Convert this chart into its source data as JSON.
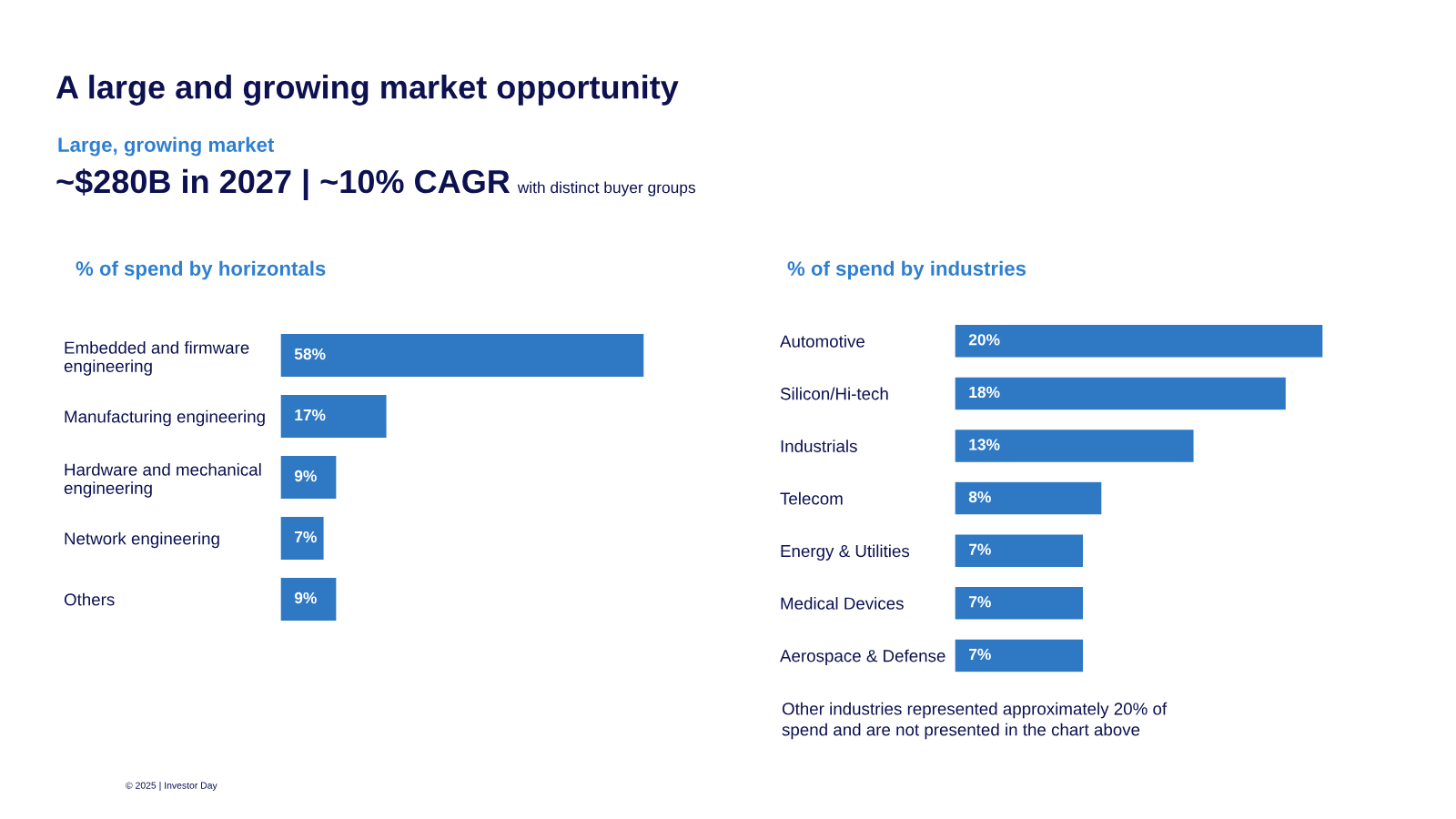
{
  "chart_data": [
    {
      "type": "other",
      "title": "A large and growing market opportunity",
      "subtitle": "Large, growing market",
      "annotations": [
        "~$280B in 2027 | ~10% CAGR",
        "with distinct buyer groups",
        "© 2025 | Investor Day"
      ]
    },
    {
      "type": "bar",
      "orientation": "horizontal",
      "title": "% of spend by horizontals",
      "categories": [
        "Embedded and firmware\nengineering",
        "Manufacturing engineering",
        "Hardware and mechanical\nengineering",
        "Network engineering",
        "Others"
      ],
      "values": [
        58,
        17,
        9,
        7,
        9
      ],
      "color": "#2f78c4",
      "value_labels": [
        "58%",
        "17%",
        "9%",
        "7%",
        "9%"
      ]
    },
    {
      "type": "bar",
      "orientation": "horizontal",
      "title": "% of spend by industries",
      "categories": [
        "Automotive",
        "Silicon/Hi-tech",
        "Industrials",
        "Telecom",
        "Energy & Utilities",
        "Medical Devices",
        "Aerospace & Defense"
      ],
      "values": [
        20,
        18,
        13,
        8,
        7,
        7,
        7
      ],
      "color": "#2f78c4",
      "value_labels": [
        "20%",
        "18%",
        "13%",
        "8%",
        "7%",
        "7%",
        "7%"
      ],
      "annotations": [
        "Other industries represented approximately 20% of\nspend and are not presented in the chart above"
      ]
    }
  ]
}
